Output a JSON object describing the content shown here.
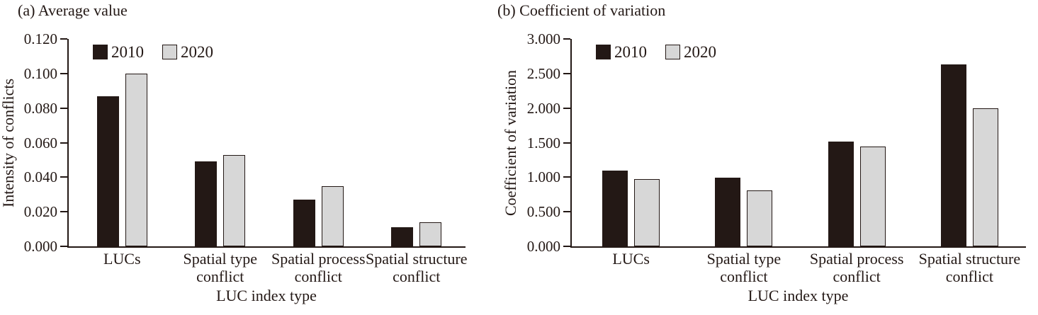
{
  "page": {
    "background": "#ffffff"
  },
  "colors": {
    "series_2010": "#231815",
    "series_2020": "#d7d7d7",
    "bar_border": "#231815",
    "axis": "#231815",
    "text": "#231815"
  },
  "legend": {
    "items": [
      {
        "label": "2010",
        "color": "#231815"
      },
      {
        "label": "2020",
        "color": "#d7d7d7"
      }
    ]
  },
  "chart_data": [
    {
      "type": "bar",
      "panel": "a",
      "title": "(a) Average value",
      "xlabel": "LUC index type",
      "ylabel": "Intensity of conflicts",
      "ylim": [
        0,
        0.12
      ],
      "ytick_labels": [
        "0.000",
        "0.020",
        "0.040",
        "0.060",
        "0.080",
        "0.100",
        "0.120"
      ],
      "grid": false,
      "legend_position": "top-left-inside",
      "categories": [
        "LUCs",
        "Spatial type conflict",
        "Spatial process conflict",
        "Spatial structure conflict"
      ],
      "categories_display": [
        [
          "LUCs"
        ],
        [
          "Spatial type",
          "conflict"
        ],
        [
          "Spatial process",
          "conflict"
        ],
        [
          "Spatial structure",
          "conflict"
        ]
      ],
      "series": [
        {
          "name": "2010",
          "values": [
            0.087,
            0.049,
            0.027,
            0.011
          ]
        },
        {
          "name": "2020",
          "values": [
            0.1,
            0.053,
            0.035,
            0.014
          ]
        }
      ]
    },
    {
      "type": "bar",
      "panel": "b",
      "title": "(b) Coefficient of variation",
      "xlabel": "LUC index type",
      "ylabel": "Coefficient of variation",
      "ylim": [
        0,
        3.0
      ],
      "ytick_labels": [
        "0.000",
        "0.500",
        "1.000",
        "1.500",
        "2.000",
        "2.500",
        "3.000"
      ],
      "grid": false,
      "legend_position": "top-left-inside",
      "categories": [
        "LUCs",
        "Spatial type conflict",
        "Spatial process conflict",
        "Spatial structure conflict"
      ],
      "categories_display": [
        [
          "LUCs"
        ],
        [
          "Spatial type",
          "conflict"
        ],
        [
          "Spatial process",
          "conflict"
        ],
        [
          "Spatial structure",
          "conflict"
        ]
      ],
      "series": [
        {
          "name": "2010",
          "values": [
            1.1,
            0.99,
            1.52,
            2.63
          ]
        },
        {
          "name": "2020",
          "values": [
            0.97,
            0.81,
            1.44,
            2.0
          ]
        }
      ]
    }
  ]
}
